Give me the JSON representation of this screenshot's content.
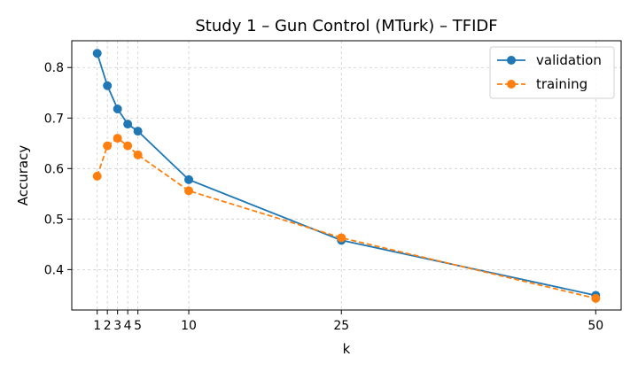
{
  "chart_data": {
    "type": "line",
    "title": "Study 1 – Gun Control (MTurk) – TFIDF",
    "xlabel": "k",
    "ylabel": "Accuracy",
    "x": [
      1,
      2,
      3,
      4,
      5,
      10,
      25,
      50
    ],
    "x_tick_labels": [
      "1",
      "2",
      "3",
      "4",
      "5",
      "10",
      "25",
      "50"
    ],
    "y_ticks": [
      0.4,
      0.5,
      0.6,
      0.7,
      0.8
    ],
    "y_tick_labels": [
      "0.4",
      "0.5",
      "0.6",
      "0.7",
      "0.8"
    ],
    "xlim": [
      -1.5,
      52.5
    ],
    "ylim": [
      0.32,
      0.853
    ],
    "grid": true,
    "legend_position": "top-right",
    "series": [
      {
        "name": "validation",
        "color": "#1f77b4",
        "line_style": "solid",
        "marker": "circle",
        "values": [
          0.828,
          0.764,
          0.718,
          0.688,
          0.674,
          0.578,
          0.458,
          0.349
        ]
      },
      {
        "name": "training",
        "color": "#ff7f0e",
        "line_style": "dashed",
        "marker": "circle",
        "values": [
          0.585,
          0.645,
          0.66,
          0.645,
          0.627,
          0.556,
          0.463,
          0.343
        ]
      }
    ]
  }
}
